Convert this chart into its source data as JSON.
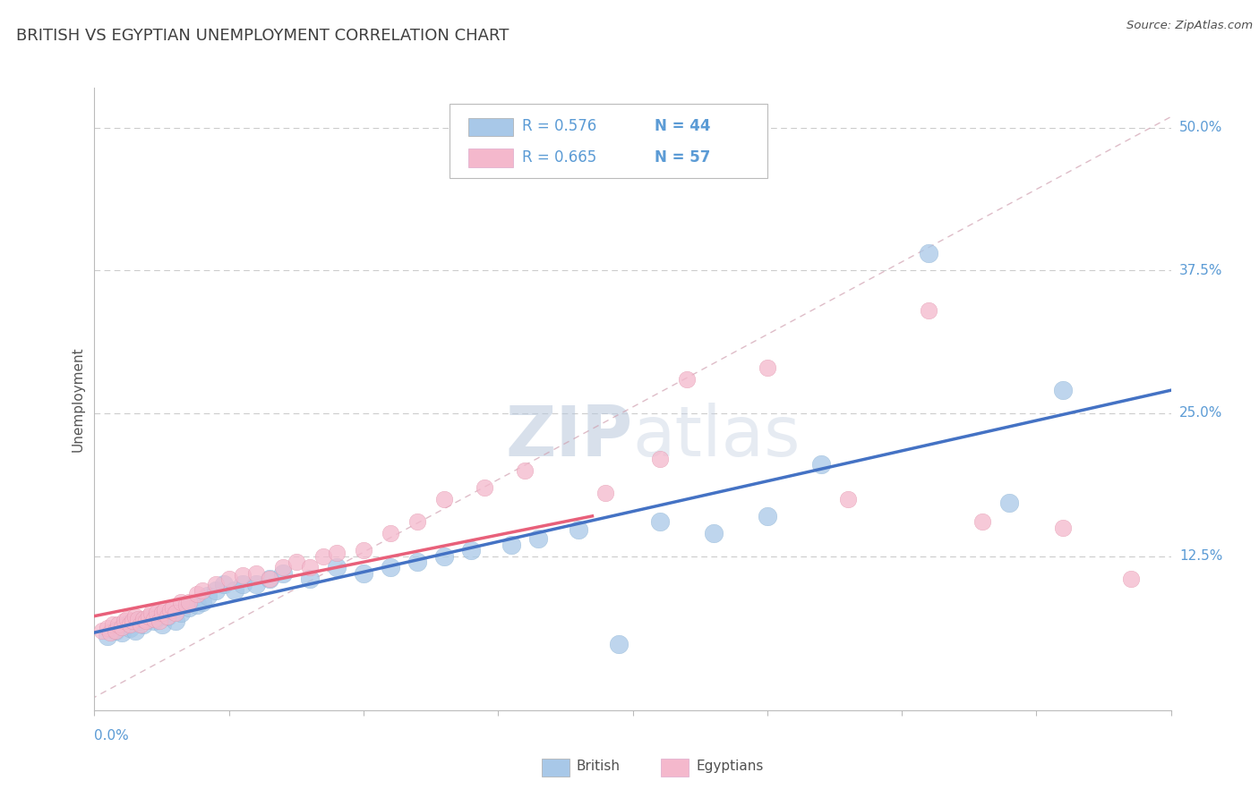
{
  "title": "BRITISH VS EGYPTIAN UNEMPLOYMENT CORRELATION CHART",
  "source": "Source: ZipAtlas.com",
  "ylabel": "Unemployment",
  "y_ticks": [
    0.0,
    0.125,
    0.25,
    0.375,
    0.5
  ],
  "y_tick_labels": [
    "",
    "12.5%",
    "25.0%",
    "37.5%",
    "50.0%"
  ],
  "x_range": [
    0.0,
    0.4
  ],
  "y_range": [
    -0.01,
    0.535
  ],
  "british_R": 0.576,
  "british_N": 44,
  "egyptian_R": 0.665,
  "egyptian_N": 57,
  "british_color": "#a8c8e8",
  "egyptian_color": "#f4b8cc",
  "british_line_color": "#4472c4",
  "egyptian_line_color": "#e8607a",
  "ref_line_color": "#c8c8c8",
  "title_color": "#404040",
  "axis_label_color": "#5b9bd5",
  "background_color": "#ffffff",
  "watermark_color": "#cdd8ea",
  "british_x": [
    0.005,
    0.008,
    0.01,
    0.012,
    0.013,
    0.015,
    0.016,
    0.018,
    0.02,
    0.022,
    0.024,
    0.025,
    0.027,
    0.03,
    0.032,
    0.035,
    0.038,
    0.04,
    0.042,
    0.045,
    0.048,
    0.052,
    0.055,
    0.06,
    0.065,
    0.07,
    0.08,
    0.09,
    0.1,
    0.11,
    0.12,
    0.13,
    0.14,
    0.155,
    0.165,
    0.18,
    0.195,
    0.21,
    0.23,
    0.25,
    0.27,
    0.31,
    0.34,
    0.36
  ],
  "british_y": [
    0.055,
    0.06,
    0.058,
    0.065,
    0.062,
    0.06,
    0.068,
    0.065,
    0.07,
    0.068,
    0.072,
    0.065,
    0.072,
    0.068,
    0.075,
    0.08,
    0.082,
    0.085,
    0.09,
    0.095,
    0.1,
    0.095,
    0.1,
    0.1,
    0.105,
    0.11,
    0.105,
    0.115,
    0.11,
    0.115,
    0.12,
    0.125,
    0.13,
    0.135,
    0.14,
    0.148,
    0.048,
    0.155,
    0.145,
    0.16,
    0.205,
    0.39,
    0.172,
    0.27
  ],
  "egyptian_x": [
    0.003,
    0.005,
    0.006,
    0.007,
    0.008,
    0.009,
    0.01,
    0.011,
    0.012,
    0.013,
    0.014,
    0.015,
    0.016,
    0.017,
    0.018,
    0.019,
    0.02,
    0.021,
    0.022,
    0.023,
    0.024,
    0.025,
    0.026,
    0.027,
    0.028,
    0.029,
    0.03,
    0.032,
    0.034,
    0.035,
    0.038,
    0.04,
    0.045,
    0.05,
    0.055,
    0.06,
    0.065,
    0.07,
    0.075,
    0.08,
    0.085,
    0.09,
    0.1,
    0.11,
    0.12,
    0.13,
    0.145,
    0.16,
    0.19,
    0.21,
    0.22,
    0.25,
    0.28,
    0.31,
    0.33,
    0.36,
    0.385
  ],
  "egyptian_y": [
    0.06,
    0.062,
    0.058,
    0.065,
    0.06,
    0.065,
    0.063,
    0.068,
    0.07,
    0.065,
    0.068,
    0.072,
    0.07,
    0.065,
    0.07,
    0.068,
    0.072,
    0.075,
    0.07,
    0.075,
    0.068,
    0.075,
    0.078,
    0.072,
    0.078,
    0.08,
    0.075,
    0.085,
    0.082,
    0.085,
    0.092,
    0.095,
    0.1,
    0.105,
    0.108,
    0.11,
    0.105,
    0.115,
    0.12,
    0.115,
    0.125,
    0.128,
    0.13,
    0.145,
    0.155,
    0.175,
    0.185,
    0.2,
    0.18,
    0.21,
    0.28,
    0.29,
    0.175,
    0.34,
    0.155,
    0.15,
    0.105
  ],
  "british_line_x0": 0.0,
  "british_line_x1": 0.4,
  "british_line_y0": 0.045,
  "british_line_y1": 0.285,
  "egyptian_line_x0": 0.0,
  "egyptian_line_x1": 0.185,
  "egyptian_line_y0": 0.03,
  "egyptian_line_y1": 0.245
}
